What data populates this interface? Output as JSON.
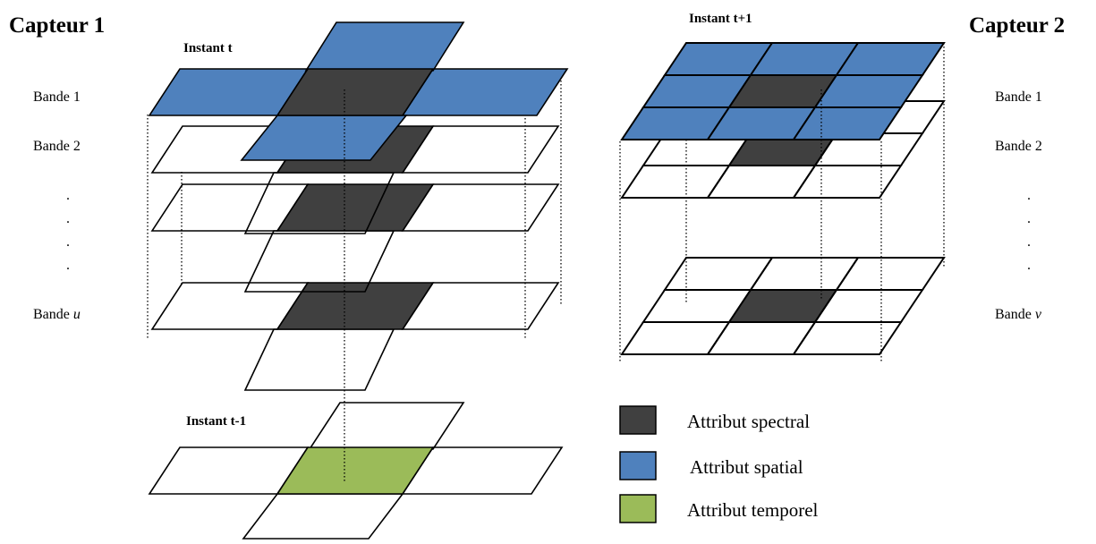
{
  "sensor1": {
    "title": "Capteur 1",
    "bands": {
      "b1": "Bande 1",
      "b2": "Bande 2",
      "bu_prefix": "Bande ",
      "bu_var": "u"
    },
    "dots": ".",
    "instant_t": "Instant t",
    "instant_t_minus": "Instant t-1"
  },
  "sensor2": {
    "title": "Capteur 2",
    "bands": {
      "b1": "Bande 1",
      "b2": "Bande 2",
      "bv_prefix": "Bande ",
      "bv_var": "v"
    },
    "dots": ".",
    "instant_t_plus": "Instant t+1"
  },
  "legend": {
    "items": [
      {
        "label": "Attribut spectral",
        "color": "#404040"
      },
      {
        "label": "Attribut spatial",
        "color": "#4f81bd"
      },
      {
        "label": "Attribut temporel",
        "color": "#9bbb59"
      }
    ]
  },
  "colors": {
    "spectral": "#404040",
    "spatial": "#4f81bd",
    "temporal": "#9bbb59",
    "stroke": "#000000"
  }
}
